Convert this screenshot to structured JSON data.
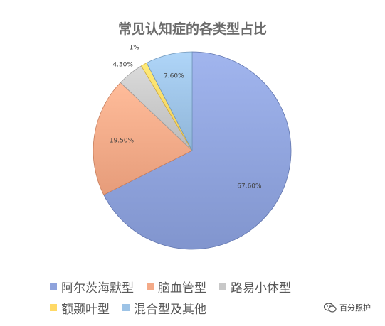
{
  "chart_data": {
    "type": "pie",
    "title": "常见认知症的各类型占比",
    "slices": [
      {
        "label": "阿尔茨海默型",
        "value": 67.6,
        "data_label": "67.60%",
        "color": "#8FA3DC"
      },
      {
        "label": "脑血管型",
        "value": 19.5,
        "data_label": "19.50%",
        "color": "#F4AA88"
      },
      {
        "label": "路易小体型",
        "value": 4.3,
        "data_label": "4.30%",
        "color": "#C8C8C8"
      },
      {
        "label": "额颞叶型",
        "value": 1,
        "data_label": "1%",
        "color": "#FFD966"
      },
      {
        "label": "混合型及其他",
        "value": 7.6,
        "data_label": "7.60%",
        "color": "#9DC3E6"
      }
    ],
    "legend_position": "bottom"
  },
  "watermark": {
    "text": "百分照护",
    "icon": "wechat-icon"
  }
}
